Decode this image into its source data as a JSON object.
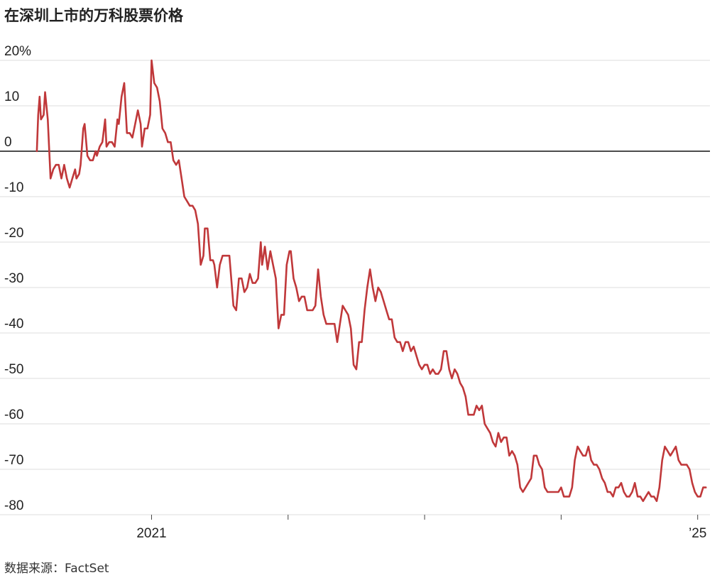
{
  "title": "在深圳上市的万科股票价格",
  "source": "数据来源：FactSet",
  "chart_data": {
    "type": "line",
    "title": "在深圳上市的万科股票价格",
    "ylabel": "",
    "xlabel": "",
    "ylim": [
      -80,
      20
    ],
    "y_ticks": [
      20,
      10,
      0,
      -10,
      -20,
      -30,
      -40,
      -50,
      -60,
      -70,
      -80
    ],
    "y_tick_labels": [
      "20%",
      "10",
      "0",
      "-10",
      "-20",
      "-30",
      "-40",
      "-50",
      "-60",
      "-70",
      "-80"
    ],
    "x_tick_labels": [
      {
        "value": 2021.0,
        "label": "2021"
      },
      {
        "value": 2025.0,
        "label": "’25"
      }
    ],
    "x_ticks": [
      2021.0,
      2022.0,
      2023.0,
      2024.0,
      2025.0
    ],
    "xlim": [
      2020.15,
      2025.09
    ],
    "grid": true,
    "zero_line": true,
    "series": [
      {
        "color": "#c0383a",
        "points": [
          [
            2020.16,
            0
          ],
          [
            2020.17,
            8
          ],
          [
            2020.18,
            12
          ],
          [
            2020.19,
            7
          ],
          [
            2020.21,
            8
          ],
          [
            2020.22,
            13
          ],
          [
            2020.24,
            7
          ],
          [
            2020.26,
            -6
          ],
          [
            2020.28,
            -4
          ],
          [
            2020.3,
            -3
          ],
          [
            2020.32,
            -3
          ],
          [
            2020.34,
            -6
          ],
          [
            2020.36,
            -3
          ],
          [
            2020.38,
            -6
          ],
          [
            2020.4,
            -8
          ],
          [
            2020.42,
            -6
          ],
          [
            2020.44,
            -4
          ],
          [
            2020.45,
            -6
          ],
          [
            2020.47,
            -5
          ],
          [
            2020.48,
            -3
          ],
          [
            2020.5,
            5
          ],
          [
            2020.51,
            6
          ],
          [
            2020.53,
            -1
          ],
          [
            2020.55,
            -2
          ],
          [
            2020.57,
            -2
          ],
          [
            2020.59,
            0
          ],
          [
            2020.6,
            -1
          ],
          [
            2020.62,
            1
          ],
          [
            2020.64,
            2
          ],
          [
            2020.66,
            7
          ],
          [
            2020.67,
            1
          ],
          [
            2020.69,
            2
          ],
          [
            2020.71,
            2
          ],
          [
            2020.73,
            1
          ],
          [
            2020.75,
            7
          ],
          [
            2020.76,
            6
          ],
          [
            2020.78,
            12
          ],
          [
            2020.8,
            15
          ],
          [
            2020.82,
            4
          ],
          [
            2020.84,
            4
          ],
          [
            2020.86,
            3
          ],
          [
            2020.88,
            6
          ],
          [
            2020.9,
            9
          ],
          [
            2020.92,
            6
          ],
          [
            2020.93,
            1
          ],
          [
            2020.95,
            5
          ],
          [
            2020.97,
            5
          ],
          [
            2020.99,
            8
          ],
          [
            2021.0,
            20
          ],
          [
            2021.02,
            15
          ],
          [
            2021.04,
            14
          ],
          [
            2021.06,
            11
          ],
          [
            2021.08,
            5
          ],
          [
            2021.1,
            4
          ],
          [
            2021.12,
            2
          ],
          [
            2021.14,
            2
          ],
          [
            2021.16,
            -2
          ],
          [
            2021.18,
            -3
          ],
          [
            2021.2,
            -2
          ],
          [
            2021.22,
            -6
          ],
          [
            2021.24,
            -10
          ],
          [
            2021.26,
            -11
          ],
          [
            2021.28,
            -12
          ],
          [
            2021.3,
            -12
          ],
          [
            2021.32,
            -13
          ],
          [
            2021.34,
            -16
          ],
          [
            2021.36,
            -25
          ],
          [
            2021.38,
            -23
          ],
          [
            2021.39,
            -17
          ],
          [
            2021.41,
            -17
          ],
          [
            2021.43,
            -24
          ],
          [
            2021.45,
            -24
          ],
          [
            2021.46,
            -25
          ],
          [
            2021.48,
            -30
          ],
          [
            2021.5,
            -25
          ],
          [
            2021.52,
            -23
          ],
          [
            2021.54,
            -23
          ],
          [
            2021.56,
            -23
          ],
          [
            2021.57,
            -23
          ],
          [
            2021.6,
            -34
          ],
          [
            2021.62,
            -35
          ],
          [
            2021.64,
            -28
          ],
          [
            2021.66,
            -28
          ],
          [
            2021.68,
            -31
          ],
          [
            2021.7,
            -30
          ],
          [
            2021.72,
            -27
          ],
          [
            2021.74,
            -29
          ],
          [
            2021.76,
            -29
          ],
          [
            2021.78,
            -28
          ],
          [
            2021.8,
            -20
          ],
          [
            2021.81,
            -25
          ],
          [
            2021.83,
            -21
          ],
          [
            2021.85,
            -26
          ],
          [
            2021.87,
            -22
          ],
          [
            2021.89,
            -25
          ],
          [
            2021.91,
            -28
          ],
          [
            2021.93,
            -39
          ],
          [
            2021.95,
            -36
          ],
          [
            2021.97,
            -36
          ],
          [
            2021.99,
            -25
          ],
          [
            2022.01,
            -22
          ],
          [
            2022.02,
            -22
          ],
          [
            2022.04,
            -28
          ],
          [
            2022.06,
            -30
          ],
          [
            2022.08,
            -33
          ],
          [
            2022.1,
            -32
          ],
          [
            2022.12,
            -32
          ],
          [
            2022.14,
            -35
          ],
          [
            2022.16,
            -35
          ],
          [
            2022.18,
            -35
          ],
          [
            2022.2,
            -34
          ],
          [
            2022.22,
            -26
          ],
          [
            2022.24,
            -32
          ],
          [
            2022.26,
            -36
          ],
          [
            2022.28,
            -38
          ],
          [
            2022.3,
            -38
          ],
          [
            2022.32,
            -38
          ],
          [
            2022.34,
            -38
          ],
          [
            2022.36,
            -42
          ],
          [
            2022.38,
            -38
          ],
          [
            2022.4,
            -34
          ],
          [
            2022.42,
            -35
          ],
          [
            2022.44,
            -36
          ],
          [
            2022.46,
            -39
          ],
          [
            2022.48,
            -47
          ],
          [
            2022.5,
            -48
          ],
          [
            2022.52,
            -42
          ],
          [
            2022.54,
            -42
          ],
          [
            2022.56,
            -35
          ],
          [
            2022.58,
            -30
          ],
          [
            2022.6,
            -26
          ],
          [
            2022.62,
            -30
          ],
          [
            2022.64,
            -33
          ],
          [
            2022.66,
            -30
          ],
          [
            2022.68,
            -31
          ],
          [
            2022.7,
            -33
          ],
          [
            2022.72,
            -35
          ],
          [
            2022.74,
            -37
          ],
          [
            2022.76,
            -37
          ],
          [
            2022.78,
            -41
          ],
          [
            2022.8,
            -42
          ],
          [
            2022.82,
            -42
          ],
          [
            2022.84,
            -44
          ],
          [
            2022.86,
            -42
          ],
          [
            2022.88,
            -42
          ],
          [
            2022.9,
            -44
          ],
          [
            2022.92,
            -43
          ],
          [
            2022.94,
            -45
          ],
          [
            2022.96,
            -47
          ],
          [
            2022.98,
            -48
          ],
          [
            2023.0,
            -47
          ],
          [
            2023.02,
            -47
          ],
          [
            2023.04,
            -49
          ],
          [
            2023.06,
            -48
          ],
          [
            2023.08,
            -49
          ],
          [
            2023.1,
            -49
          ],
          [
            2023.12,
            -48
          ],
          [
            2023.14,
            -44
          ],
          [
            2023.16,
            -44
          ],
          [
            2023.18,
            -48
          ],
          [
            2023.2,
            -50
          ],
          [
            2023.22,
            -48
          ],
          [
            2023.24,
            -49
          ],
          [
            2023.26,
            -51
          ],
          [
            2023.28,
            -52
          ],
          [
            2023.3,
            -54
          ],
          [
            2023.32,
            -58
          ],
          [
            2023.34,
            -58
          ],
          [
            2023.36,
            -58
          ],
          [
            2023.38,
            -56
          ],
          [
            2023.4,
            -57
          ],
          [
            2023.42,
            -56
          ],
          [
            2023.44,
            -60
          ],
          [
            2023.46,
            -61
          ],
          [
            2023.48,
            -62
          ],
          [
            2023.5,
            -64
          ],
          [
            2023.52,
            -65
          ],
          [
            2023.54,
            -62
          ],
          [
            2023.56,
            -64
          ],
          [
            2023.58,
            -63
          ],
          [
            2023.6,
            -63
          ],
          [
            2023.62,
            -67
          ],
          [
            2023.64,
            -66
          ],
          [
            2023.66,
            -67
          ],
          [
            2023.68,
            -69
          ],
          [
            2023.7,
            -74
          ],
          [
            2023.72,
            -75
          ],
          [
            2023.74,
            -74
          ],
          [
            2023.76,
            -73
          ],
          [
            2023.78,
            -72
          ],
          [
            2023.8,
            -67
          ],
          [
            2023.82,
            -67
          ],
          [
            2023.84,
            -69
          ],
          [
            2023.86,
            -70
          ],
          [
            2023.88,
            -74
          ],
          [
            2023.9,
            -75
          ],
          [
            2023.92,
            -75
          ],
          [
            2023.94,
            -75
          ],
          [
            2023.96,
            -75
          ],
          [
            2023.98,
            -75
          ],
          [
            2024.0,
            -74
          ],
          [
            2024.02,
            -76
          ],
          [
            2024.04,
            -76
          ],
          [
            2024.06,
            -76
          ],
          [
            2024.08,
            -74
          ],
          [
            2024.1,
            -68
          ],
          [
            2024.12,
            -65
          ],
          [
            2024.14,
            -66
          ],
          [
            2024.16,
            -67
          ],
          [
            2024.18,
            -67
          ],
          [
            2024.2,
            -65
          ],
          [
            2024.22,
            -68
          ],
          [
            2024.24,
            -69
          ],
          [
            2024.26,
            -69
          ],
          [
            2024.28,
            -70
          ],
          [
            2024.3,
            -72
          ],
          [
            2024.32,
            -73
          ],
          [
            2024.34,
            -75
          ],
          [
            2024.36,
            -75
          ],
          [
            2024.38,
            -76
          ],
          [
            2024.4,
            -74
          ],
          [
            2024.42,
            -74
          ],
          [
            2024.44,
            -73
          ],
          [
            2024.46,
            -75
          ],
          [
            2024.48,
            -76
          ],
          [
            2024.5,
            -76
          ],
          [
            2024.52,
            -75
          ],
          [
            2024.54,
            -73
          ],
          [
            2024.56,
            -76
          ],
          [
            2024.58,
            -76
          ],
          [
            2024.6,
            -77
          ],
          [
            2024.62,
            -76
          ],
          [
            2024.64,
            -75
          ],
          [
            2024.66,
            -76
          ],
          [
            2024.68,
            -76
          ],
          [
            2024.7,
            -77
          ],
          [
            2024.72,
            -74
          ],
          [
            2024.74,
            -68
          ],
          [
            2024.76,
            -65
          ],
          [
            2024.78,
            -66
          ],
          [
            2024.8,
            -67
          ],
          [
            2024.82,
            -66
          ],
          [
            2024.84,
            -65
          ],
          [
            2024.86,
            -68
          ],
          [
            2024.88,
            -69
          ],
          [
            2024.9,
            -69
          ],
          [
            2024.92,
            -69
          ],
          [
            2024.94,
            -70
          ],
          [
            2024.96,
            -73
          ],
          [
            2024.98,
            -75
          ],
          [
            2025.0,
            -76
          ],
          [
            2025.02,
            -76
          ],
          [
            2025.04,
            -74
          ],
          [
            2025.06,
            -74
          ]
        ]
      }
    ]
  }
}
